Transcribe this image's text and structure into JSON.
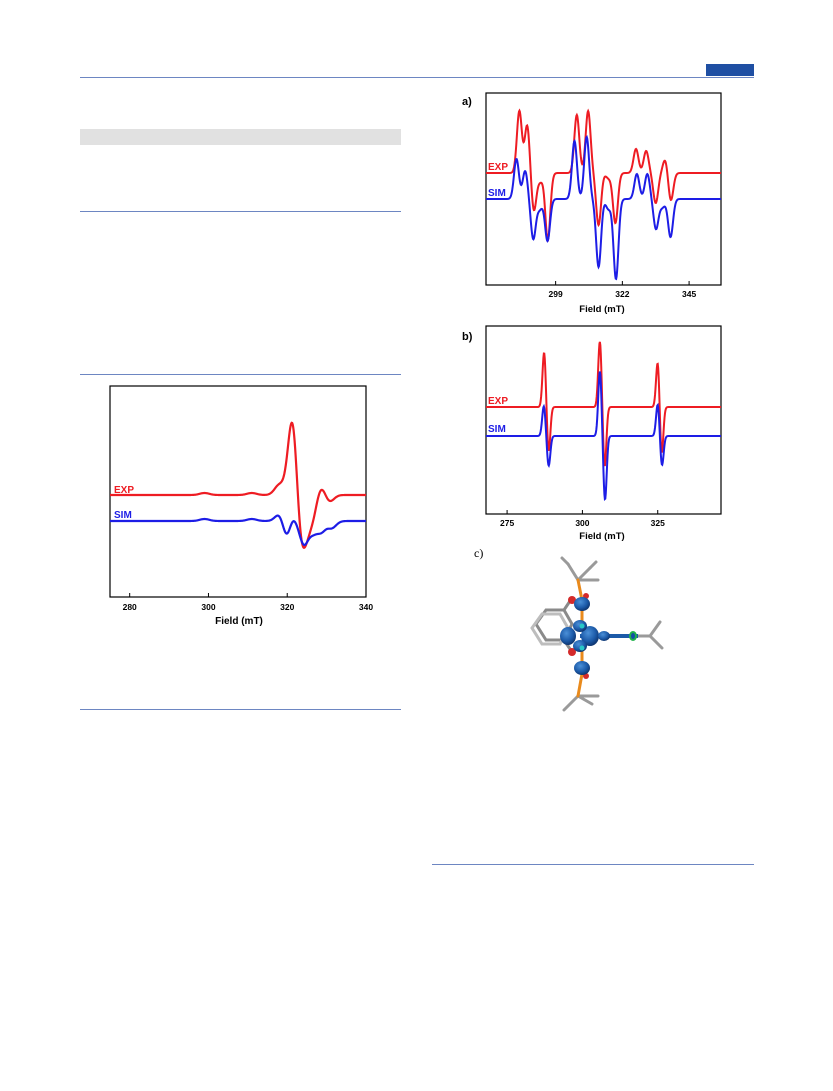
{
  "colors": {
    "exp": "#ee1c23",
    "sim": "#1d1de6",
    "rule": "#6d86c2",
    "accent": "#1f4fa3"
  },
  "charts": {
    "left": {
      "label": "",
      "xlabel": "Field (mT)",
      "ticks": [
        "280",
        "300",
        "320",
        "340"
      ],
      "legend": {
        "exp": "EXP",
        "sim": "SIM"
      }
    },
    "a": {
      "label": "a)",
      "xlabel": "Field (mT)",
      "ticks": [
        "299",
        "322",
        "345"
      ],
      "legend": {
        "exp": "EXP",
        "sim": "SIM"
      }
    },
    "b": {
      "label": "b)",
      "xlabel": "Field (mT)",
      "ticks": [
        "275",
        "300",
        "325"
      ],
      "legend": {
        "exp": "EXP",
        "sim": "SIM"
      }
    }
  },
  "panel_c": {
    "label": "c)"
  },
  "chart_data": [
    {
      "type": "line",
      "xlabel": "Field (mT)",
      "xlim": [
        275,
        340
      ],
      "xticks": [
        280,
        300,
        320,
        340
      ],
      "legend": [
        "EXP",
        "SIM"
      ],
      "series": [
        {
          "name": "EXP"
        },
        {
          "name": "SIM"
        }
      ],
      "features": [
        {
          "series": "EXP",
          "x": 299,
          "dy": 2
        },
        {
          "series": "EXP",
          "x": 311,
          "dy": 2
        },
        {
          "series": "EXP",
          "x": 318,
          "dy": 10
        },
        {
          "series": "EXP",
          "x": 321.5,
          "dy": 90
        },
        {
          "series": "EXP",
          "x": 323,
          "dy": -45
        },
        {
          "series": "EXP",
          "x": 324.5,
          "dy": -30
        },
        {
          "series": "EXP",
          "x": 326.5,
          "dy": -22
        },
        {
          "series": "EXP",
          "x": 328.5,
          "dy": 12
        },
        {
          "series": "EXP",
          "x": 330.5,
          "dy": -8
        },
        {
          "series": "SIM",
          "x": 299,
          "dy": 2
        },
        {
          "series": "SIM",
          "x": 311,
          "dy": 2
        },
        {
          "series": "SIM",
          "x": 318.5,
          "dy": 12
        },
        {
          "series": "SIM",
          "x": 320,
          "dy": -28
        },
        {
          "series": "SIM",
          "x": 321.5,
          "dy": 30
        },
        {
          "series": "SIM",
          "x": 322.5,
          "dy": -40
        },
        {
          "series": "SIM",
          "x": 323.3,
          "dy": 45
        },
        {
          "series": "SIM",
          "x": 324.2,
          "dy": -58
        },
        {
          "series": "SIM",
          "x": 325.3,
          "dy": 28
        },
        {
          "series": "SIM",
          "x": 326.3,
          "dy": -28
        },
        {
          "series": "SIM",
          "x": 327.5,
          "dy": 12
        },
        {
          "series": "SIM",
          "x": 328.5,
          "dy": -18
        },
        {
          "series": "SIM",
          "x": 330,
          "dy": 6
        },
        {
          "series": "SIM",
          "x": 331,
          "dy": -10
        }
      ]
    },
    {
      "type": "line",
      "xlabel": "Field (mT)",
      "xlim": [
        275,
        356
      ],
      "xticks": [
        299,
        322,
        345
      ],
      "legend": [
        "EXP",
        "SIM"
      ],
      "series": [
        {
          "name": "EXP"
        },
        {
          "name": "SIM"
        }
      ],
      "features": [
        {
          "series": "EXP",
          "x": 286.5,
          "dy": 62
        },
        {
          "series": "EXP",
          "x": 289.2,
          "dy": 48
        },
        {
          "series": "EXP",
          "x": 291.5,
          "dy": -38
        },
        {
          "series": "EXP",
          "x": 293.7,
          "dy": -8
        },
        {
          "series": "EXP",
          "x": 296.3,
          "dy": -67
        },
        {
          "series": "EXP",
          "x": 306.3,
          "dy": 58
        },
        {
          "series": "EXP",
          "x": 310.2,
          "dy": 62
        },
        {
          "series": "EXP",
          "x": 313.8,
          "dy": -52
        },
        {
          "series": "EXP",
          "x": 317.2,
          "dy": -5
        },
        {
          "series": "EXP",
          "x": 319.6,
          "dy": -50
        },
        {
          "series": "EXP",
          "x": 326.7,
          "dy": 24
        },
        {
          "series": "EXP",
          "x": 330.2,
          "dy": 22
        },
        {
          "series": "EXP",
          "x": 333.5,
          "dy": -30
        },
        {
          "series": "EXP",
          "x": 336.8,
          "dy": 14
        },
        {
          "series": "EXP",
          "x": 338.7,
          "dy": -28
        },
        {
          "series": "SIM",
          "x": 285.5,
          "dy": 40
        },
        {
          "series": "SIM",
          "x": 288.5,
          "dy": 28
        },
        {
          "series": "SIM",
          "x": 291.3,
          "dy": -40
        },
        {
          "series": "SIM",
          "x": 293.5,
          "dy": -10
        },
        {
          "series": "SIM",
          "x": 296.2,
          "dy": -42
        },
        {
          "series": "SIM",
          "x": 305.5,
          "dy": 58
        },
        {
          "series": "SIM",
          "x": 309.7,
          "dy": 62
        },
        {
          "series": "SIM",
          "x": 313.8,
          "dy": -68
        },
        {
          "series": "SIM",
          "x": 317.2,
          "dy": -10
        },
        {
          "series": "SIM",
          "x": 319.8,
          "dy": -80
        },
        {
          "series": "SIM",
          "x": 327,
          "dy": 25
        },
        {
          "series": "SIM",
          "x": 330.6,
          "dy": 25
        },
        {
          "series": "SIM",
          "x": 333.6,
          "dy": -30
        },
        {
          "series": "SIM",
          "x": 335.8,
          "dy": -8
        },
        {
          "series": "SIM",
          "x": 338.6,
          "dy": -38
        }
      ]
    },
    {
      "type": "line",
      "xlabel": "Field (mT)",
      "xlim": [
        268,
        346
      ],
      "xticks": [
        275,
        300,
        325
      ],
      "legend": [
        "EXP",
        "SIM"
      ],
      "series": [
        {
          "name": "EXP"
        },
        {
          "name": "SIM"
        }
      ],
      "features": [
        {
          "series": "EXP",
          "x": 287.3,
          "dy": 55
        },
        {
          "series": "EXP",
          "x": 288.8,
          "dy": -45
        },
        {
          "series": "EXP",
          "x": 305.8,
          "dy": 66
        },
        {
          "series": "EXP",
          "x": 307.4,
          "dy": -60
        },
        {
          "series": "EXP",
          "x": 325,
          "dy": 46
        },
        {
          "series": "EXP",
          "x": 326.3,
          "dy": -48
        },
        {
          "series": "SIM",
          "x": 287.2,
          "dy": 30
        },
        {
          "series": "SIM",
          "x": 288.8,
          "dy": -30
        },
        {
          "series": "SIM",
          "x": 305.8,
          "dy": 65
        },
        {
          "series": "SIM",
          "x": 307.5,
          "dy": -64
        },
        {
          "series": "SIM",
          "x": 325,
          "dy": 32
        },
        {
          "series": "SIM",
          "x": 326.4,
          "dy": -30
        }
      ]
    }
  ]
}
